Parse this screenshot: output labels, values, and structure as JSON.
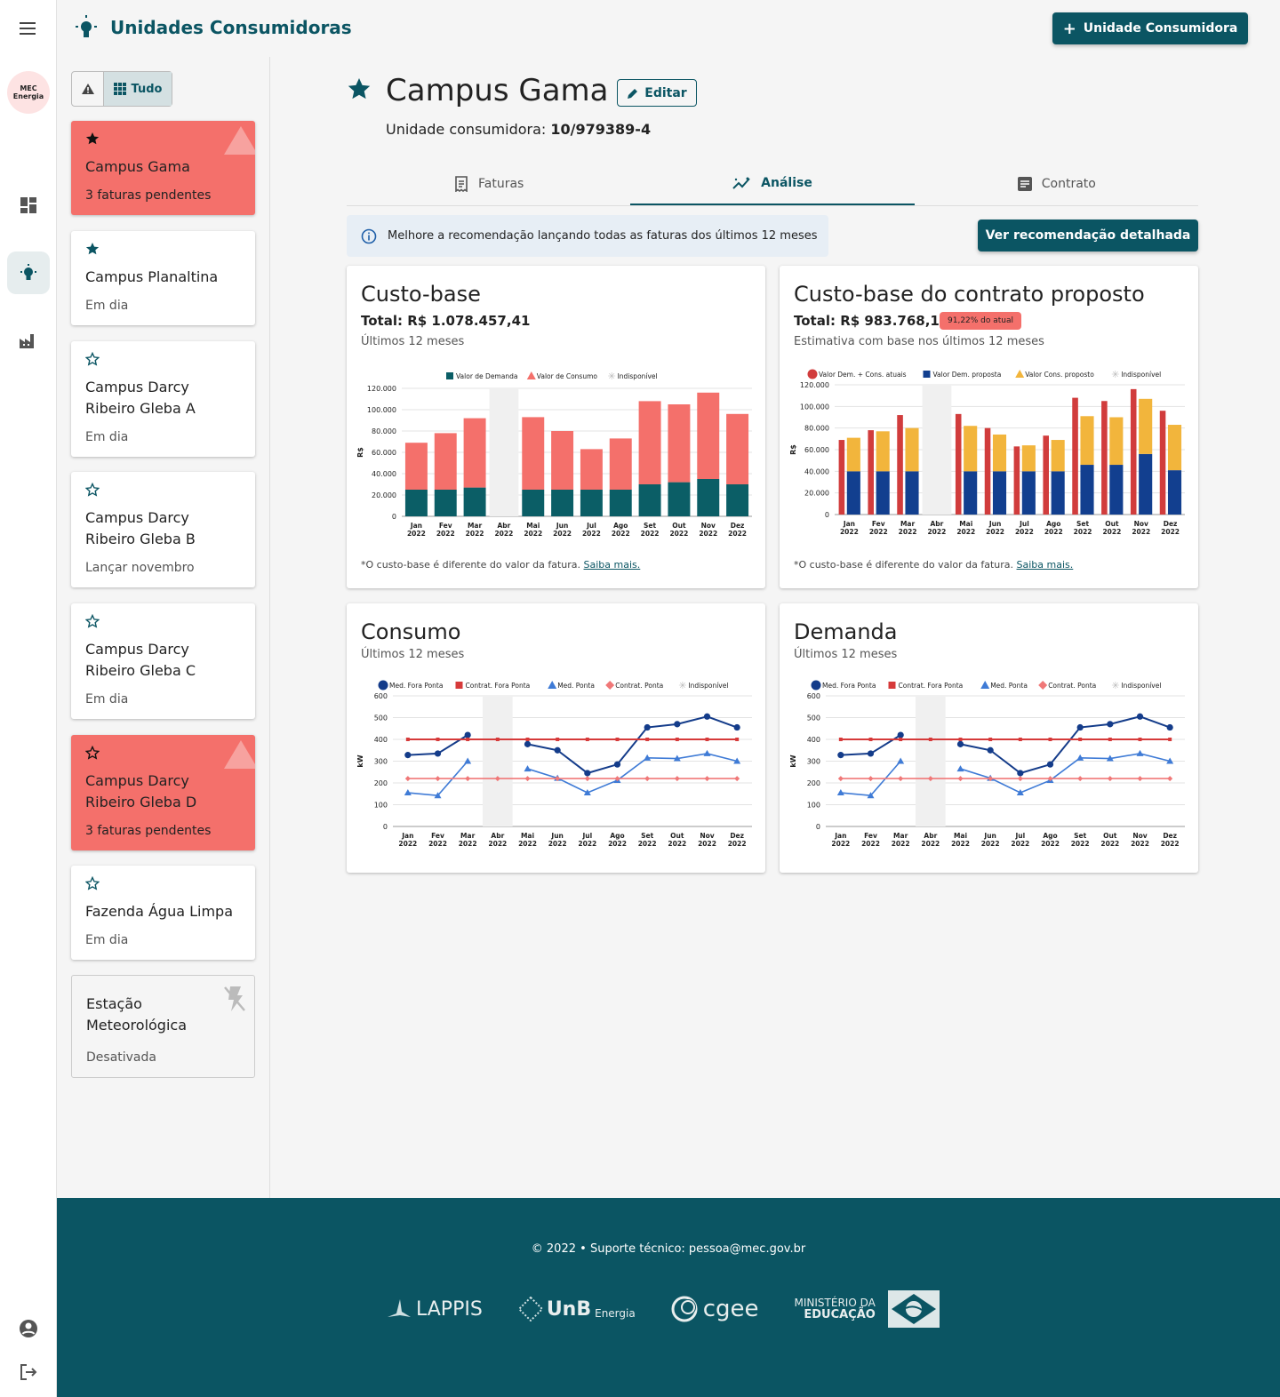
{
  "app": {
    "title": "Unidades Consumidoras",
    "add_button": "Unidade Consumidora",
    "logo_line1": "MEC",
    "logo_line2": "Energia"
  },
  "filter": {
    "all_label": "Tudo"
  },
  "units": [
    {
      "name": "Campus Gama",
      "status": "3 faturas pendentes",
      "favorite": true,
      "state": "alert"
    },
    {
      "name": "Campus Planaltina",
      "status": "Em dia",
      "favorite": true,
      "state": "ok"
    },
    {
      "name": "Campus Darcy Ribeiro Gleba A",
      "status": "Em dia",
      "favorite": false,
      "state": "ok"
    },
    {
      "name": "Campus Darcy Ribeiro Gleba B",
      "status": "Lançar novembro",
      "favorite": false,
      "state": "ok"
    },
    {
      "name": "Campus Darcy Ribeiro Gleba C",
      "status": "Em dia",
      "favorite": false,
      "state": "ok"
    },
    {
      "name": "Campus Darcy Ribeiro Gleba D",
      "status": "3 faturas pendentes",
      "favorite": false,
      "state": "alert"
    },
    {
      "name": "Fazenda Água Limpa",
      "status": "Em dia",
      "favorite": false,
      "state": "ok"
    },
    {
      "name": "Estação Meteorológica",
      "status": "Desativada",
      "favorite": false,
      "state": "disabled"
    }
  ],
  "detail": {
    "title": "Campus Gama",
    "edit_label": "Editar",
    "uc_label": "Unidade consumidora:",
    "uc_number": "10/979389-4",
    "tabs": [
      "Faturas",
      "Análise",
      "Contrato"
    ],
    "info": "Melhore a recomendação lançando todas as faturas dos últimos 12 meses",
    "recommend_button": "Ver recomendação detalhada"
  },
  "panels": {
    "custo_base": {
      "title": "Custo-base",
      "total": "Total: R$ 1.078.457,41",
      "subtitle": "Últimos 12 meses",
      "note": "*O custo-base é diferente do valor da fatura.",
      "link": "Saiba mais."
    },
    "proposto": {
      "title": "Custo-base do contrato proposto",
      "total": "Total: R$ 983.768,11",
      "badge": "91,22% do atual",
      "subtitle": "Estimativa com base nos últimos 12 meses",
      "note": "*O custo-base é diferente do valor da fatura.",
      "link": "Saiba mais."
    },
    "consumo": {
      "title": "Consumo",
      "subtitle": "Últimos 12 meses"
    },
    "demanda": {
      "title": "Demanda",
      "subtitle": "Últimos 12 meses"
    }
  },
  "footer": {
    "copyright": "© 2022",
    "support": "Suporte técnico: pessoa@mec.gov.br",
    "logos": [
      "LAPPIS",
      "UnB",
      "Energia",
      "cgee",
      "MINISTÉRIO DA",
      "EDUCAÇÃO"
    ]
  },
  "colors": {
    "brand": "#0b5563",
    "alert": "#f4706b",
    "consumo": "#f4706b",
    "demanda": "#0b5e66",
    "atual": "#d13c3c",
    "dem_proposta": "#123f8f",
    "cons_proposto": "#f2b53c",
    "fora_ponta": "#143c8a",
    "contrat_fora": "#d63a3a",
    "ponta": "#3f7bd6",
    "contrat_ponta": "#f07878"
  },
  "chart_data": [
    {
      "type": "bar",
      "title": "Custo-base",
      "ylabel": "R$",
      "ylim": [
        0,
        120000
      ],
      "yticks": [
        0,
        20000,
        40000,
        60000,
        80000,
        100000,
        120000
      ],
      "categories": [
        "Jan 2022",
        "Fev 2022",
        "Mar 2022",
        "Abr 2022",
        "Mai 2022",
        "Jun 2022",
        "Jul 2022",
        "Ago 2022",
        "Set 2022",
        "Out 2022",
        "Nov 2022",
        "Dez 2022"
      ],
      "unavailable": [
        "Abr 2022"
      ],
      "stacked": true,
      "series": [
        {
          "name": "Valor de Demanda",
          "values": [
            25000,
            25000,
            27000,
            null,
            25000,
            25000,
            25000,
            25000,
            30000,
            32000,
            35000,
            30000
          ]
        },
        {
          "name": "Valor de Consumo",
          "values": [
            44000,
            53000,
            65000,
            null,
            68000,
            55000,
            38000,
            48000,
            78000,
            73000,
            81000,
            66000
          ]
        }
      ],
      "legend": [
        "Valor de Demanda",
        "Valor de Consumo",
        "Indisponível"
      ]
    },
    {
      "type": "bar",
      "title": "Custo-base do contrato proposto",
      "ylabel": "R$",
      "ylim": [
        0,
        120000
      ],
      "yticks": [
        0,
        20000,
        40000,
        60000,
        80000,
        100000,
        120000
      ],
      "categories": [
        "Jan 2022",
        "Fev 2022",
        "Mar 2022",
        "Abr 2022",
        "Mai 2022",
        "Jun 2022",
        "Jul 2022",
        "Ago 2022",
        "Set 2022",
        "Out 2022",
        "Nov 2022",
        "Dez 2022"
      ],
      "unavailable": [
        "Abr 2022"
      ],
      "series": [
        {
          "name": "Valor Dem. + Cons. atuais",
          "values": [
            69000,
            78000,
            92000,
            null,
            93000,
            80000,
            63000,
            73000,
            108000,
            105000,
            116000,
            96000
          ]
        },
        {
          "name": "Valor Dem. proposta",
          "values": [
            40000,
            40000,
            40000,
            null,
            40000,
            40000,
            40000,
            40000,
            46000,
            46000,
            56000,
            41000
          ]
        },
        {
          "name": "Valor Cons. proposto",
          "values": [
            31000,
            37000,
            40000,
            null,
            42000,
            34000,
            24000,
            29000,
            45000,
            44000,
            51000,
            42000
          ]
        }
      ],
      "legend": [
        "Valor Dem. + Cons. atuais",
        "Valor Dem. proposta",
        "Valor Cons. proposto",
        "Indisponível"
      ]
    },
    {
      "type": "line",
      "title": "Consumo",
      "ylabel": "kW",
      "ylim": [
        0,
        600
      ],
      "yticks": [
        0,
        100,
        200,
        300,
        400,
        500,
        600
      ],
      "categories": [
        "Jan 2022",
        "Fev 2022",
        "Mar 2022",
        "Abr 2022",
        "Mai 2022",
        "Jun 2022",
        "Jul 2022",
        "Ago 2022",
        "Set 2022",
        "Out 2022",
        "Nov 2022",
        "Dez 2022"
      ],
      "unavailable": [
        "Abr 2022"
      ],
      "series": [
        {
          "name": "Med. Fora Ponta",
          "values": [
            328,
            335,
            420,
            null,
            378,
            350,
            245,
            285,
            455,
            470,
            505,
            455
          ]
        },
        {
          "name": "Contrat. Fora Ponta",
          "values": [
            400,
            400,
            400,
            400,
            400,
            400,
            400,
            400,
            400,
            400,
            400,
            400
          ]
        },
        {
          "name": "Med. Ponta",
          "values": [
            155,
            142,
            300,
            null,
            265,
            222,
            155,
            212,
            315,
            312,
            335,
            300
          ]
        },
        {
          "name": "Contrat. Ponta",
          "values": [
            220,
            220,
            220,
            220,
            220,
            220,
            220,
            220,
            220,
            220,
            220,
            220
          ]
        }
      ],
      "legend": [
        "Med. Fora Ponta",
        "Contrat. Fora Ponta",
        "Med. Ponta",
        "Contrat. Ponta",
        "Indisponível"
      ]
    },
    {
      "type": "line",
      "title": "Demanda",
      "ylabel": "kW",
      "ylim": [
        0,
        600
      ],
      "yticks": [
        0,
        100,
        200,
        300,
        400,
        500,
        600
      ],
      "categories": [
        "Jan 2022",
        "Fev 2022",
        "Mar 2022",
        "Abr 2022",
        "Mai 2022",
        "Jun 2022",
        "Jul 2022",
        "Ago 2022",
        "Set 2022",
        "Out 2022",
        "Nov 2022",
        "Dez 2022"
      ],
      "unavailable": [
        "Abr 2022"
      ],
      "series": [
        {
          "name": "Med. Fora Ponta",
          "values": [
            328,
            335,
            420,
            null,
            378,
            350,
            245,
            285,
            455,
            470,
            505,
            455
          ]
        },
        {
          "name": "Contrat. Fora Ponta",
          "values": [
            400,
            400,
            400,
            400,
            400,
            400,
            400,
            400,
            400,
            400,
            400,
            400
          ]
        },
        {
          "name": "Med. Ponta",
          "values": [
            155,
            142,
            300,
            null,
            265,
            222,
            155,
            212,
            315,
            312,
            335,
            300
          ]
        },
        {
          "name": "Contrat. Ponta",
          "values": [
            220,
            220,
            220,
            220,
            220,
            220,
            220,
            220,
            220,
            220,
            220,
            220
          ]
        }
      ],
      "legend": [
        "Med. Fora Ponta",
        "Contrat. Fora Ponta",
        "Med. Ponta",
        "Contrat. Ponta",
        "Indisponível"
      ]
    }
  ]
}
